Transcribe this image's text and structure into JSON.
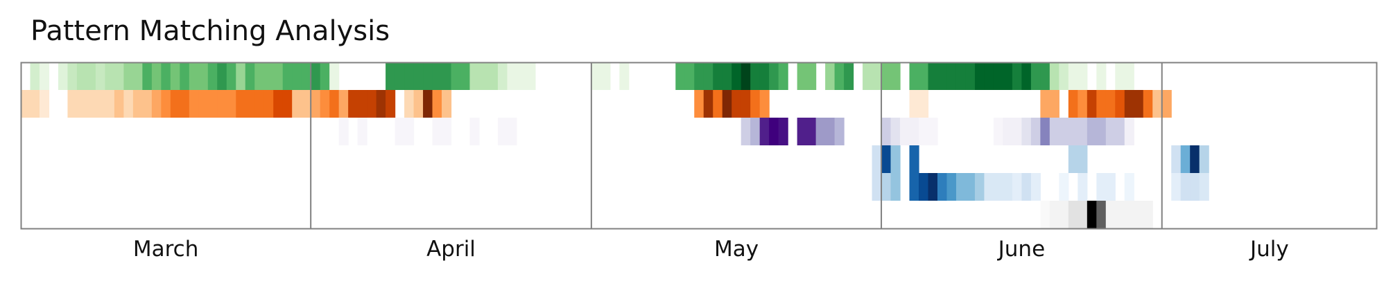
{
  "chart_data": {
    "type": "heatmap",
    "title": "Pattern Matching Analysis",
    "x_start": "2024-03-01",
    "x_end": "2024-07-24",
    "months": [
      {
        "label": "March",
        "start": "2024-03-01"
      },
      {
        "label": "April",
        "start": "2024-04-01"
      },
      {
        "label": "May",
        "start": "2024-05-01"
      },
      {
        "label": "June",
        "start": "2024-06-01"
      },
      {
        "label": "July",
        "start": "2024-07-01"
      }
    ],
    "colormaps": [
      "Greens",
      "Oranges",
      "Purples",
      "Blues",
      "Blues",
      "Greys"
    ],
    "rows": [
      {
        "start": "2024-03-02",
        "values": [
          0.2,
          0.1,
          0.0,
          0.15,
          0.25,
          0.3,
          0.3,
          0.25,
          0.3,
          0.3,
          0.4,
          0.4,
          0.6,
          0.5,
          0.6,
          0.5,
          0.6,
          0.5,
          0.5,
          0.6,
          0.7,
          0.6,
          0.4,
          0.6,
          0.5,
          0.5,
          0.5,
          0.6,
          0.6,
          0.6,
          0.7,
          0.6,
          0.1,
          0.0,
          0.0,
          0.0,
          0.0,
          0.0,
          0.7,
          0.7,
          0.7,
          0.7,
          0.7,
          0.7,
          0.7,
          0.6,
          0.6,
          0.3,
          0.3,
          0.3,
          0.2,
          0.1,
          0.1,
          0.1,
          0.0,
          0.0,
          0.0,
          0.0,
          0.0,
          0.0,
          0.1,
          0.1,
          0.0,
          0.1,
          0.0,
          0.0,
          0.0,
          0.0,
          0.0,
          0.6,
          0.6,
          0.7,
          0.7,
          0.8,
          0.8,
          0.9,
          1.0,
          0.8,
          0.8,
          0.7,
          0.6,
          0.0,
          0.5,
          0.5,
          0.0,
          0.4,
          0.6,
          0.7,
          0.0,
          0.3,
          0.3,
          0.5,
          0.5,
          0.0,
          0.6,
          0.6,
          0.8,
          0.8,
          0.8,
          0.8,
          0.8,
          0.9,
          0.9,
          0.9,
          0.9,
          0.8,
          0.9,
          0.7,
          0.7,
          0.3,
          0.2,
          0.1,
          0.1,
          0.0,
          0.1,
          0.0,
          0.1,
          0.1
        ]
      },
      {
        "start": "2024-03-01",
        "values": [
          0.2,
          0.2,
          0.1,
          0.0,
          0.0,
          0.2,
          0.2,
          0.2,
          0.2,
          0.2,
          0.3,
          0.2,
          0.3,
          0.3,
          0.4,
          0.5,
          0.6,
          0.6,
          0.5,
          0.5,
          0.5,
          0.5,
          0.5,
          0.6,
          0.6,
          0.6,
          0.6,
          0.75,
          0.75,
          0.3,
          0.3,
          0.4,
          0.5,
          0.6,
          0.4,
          0.8,
          0.8,
          0.8,
          0.9,
          0.8,
          0.0,
          0.2,
          0.3,
          1.0,
          0.5,
          0.3,
          0.0,
          0.0,
          0.0,
          0.0,
          0.0,
          0.0,
          0.0,
          0.0,
          0.0,
          0.0,
          0.0,
          0.0,
          0.0,
          0.0,
          0.0,
          0.0,
          0.0,
          0.0,
          0.0,
          0.0,
          0.0,
          0.0,
          0.0,
          0.0,
          0.0,
          0.0,
          0.5,
          0.9,
          0.6,
          1.0,
          0.8,
          0.8,
          0.6,
          0.5,
          0.0,
          0.0,
          0.0,
          0.0,
          0.0,
          0.0,
          0.0,
          0.0,
          0.0,
          0.0,
          0.0,
          0.0,
          0.0,
          0.0,
          0.0,
          0.1,
          0.1,
          0.0,
          0.0,
          0.0,
          0.0,
          0.0,
          0.0,
          0.0,
          0.0,
          0.0,
          0.0,
          0.0,
          0.0,
          0.4,
          0.4,
          0.0,
          0.6,
          0.5,
          0.8,
          0.6,
          0.6,
          0.7,
          0.9,
          0.9,
          0.6,
          0.3,
          0.4
        ]
      },
      {
        "start": "2024-04-04",
        "values": [
          0.05,
          0.0,
          0.05,
          0.0,
          0.0,
          0.0,
          0.05,
          0.05,
          0.0,
          0.0,
          0.05,
          0.05,
          0.0,
          0.0,
          0.05,
          0.0,
          0.0,
          0.05,
          0.05,
          0.0,
          0.0,
          0.0,
          0.0,
          0.0,
          0.0,
          0.0,
          0.0,
          0.0,
          0.0,
          0.0,
          0.0,
          0.0,
          0.0,
          0.0,
          0.0,
          0.0,
          0.0,
          0.0,
          0.0,
          0.0,
          0.0,
          0.0,
          0.0,
          0.3,
          0.4,
          0.9,
          1.0,
          0.95,
          0.0,
          0.9,
          0.9,
          0.5,
          0.5,
          0.4,
          0.0,
          0.0,
          0.0,
          0.0,
          0.3,
          0.2,
          0.1,
          0.1,
          0.05,
          0.05,
          0.0,
          0.0,
          0.0,
          0.0,
          0.0,
          0.0,
          0.05,
          0.1,
          0.1,
          0.2,
          0.3,
          0.6,
          0.3,
          0.3,
          0.3,
          0.3,
          0.4,
          0.4,
          0.3,
          0.3,
          0.1
        ]
      },
      {
        "start": "2024-05-31",
        "values": [
          0.2,
          0.9,
          0.4,
          0.0,
          0.8,
          0.0,
          0.0,
          0.0,
          0.0,
          0.0,
          0.0,
          0.0,
          0.0,
          0.0,
          0.0,
          0.0,
          0.0,
          0.0,
          0.0,
          0.0,
          0.0,
          0.3,
          0.3,
          0.0,
          0.0,
          0.0,
          0.0,
          0.0,
          0.0,
          0.0,
          0.0,
          0.0,
          0.2,
          0.5,
          1.0,
          0.3
        ]
      },
      {
        "start": "2024-05-31",
        "values": [
          0.2,
          0.3,
          0.4,
          0.0,
          0.8,
          0.9,
          1.0,
          0.7,
          0.6,
          0.45,
          0.45,
          0.35,
          0.15,
          0.15,
          0.15,
          0.1,
          0.2,
          0.1,
          0.0,
          0.0,
          0.05,
          0.0,
          0.1,
          0.0,
          0.1,
          0.1,
          0.0,
          0.05,
          0.0,
          0.0,
          0.0,
          0.0,
          0.1,
          0.2,
          0.2,
          0.15
        ]
      },
      {
        "start": "2024-06-18",
        "values": [
          0.05,
          0.1,
          0.1,
          0.2,
          0.2,
          1.0,
          0.7,
          0.1,
          0.1,
          0.1,
          0.1,
          0.1,
          0.0,
          0.0,
          0.0,
          0.0,
          0.0,
          0.0,
          0.0,
          0.0,
          0.0,
          0.0,
          0.0,
          0.0,
          0.0,
          0.0,
          0.0,
          0.0,
          0.0,
          0.0,
          0.0,
          0.0,
          0.0,
          0.0,
          0.0,
          0.0,
          0.0,
          0.0,
          0.0,
          0.05,
          0.05,
          0.03,
          0.0,
          0.0,
          0.0,
          0.0,
          0.0,
          0.0,
          0.0,
          0.05,
          0.0,
          0.05,
          0.05,
          0.0,
          0.0
        ]
      }
    ]
  }
}
